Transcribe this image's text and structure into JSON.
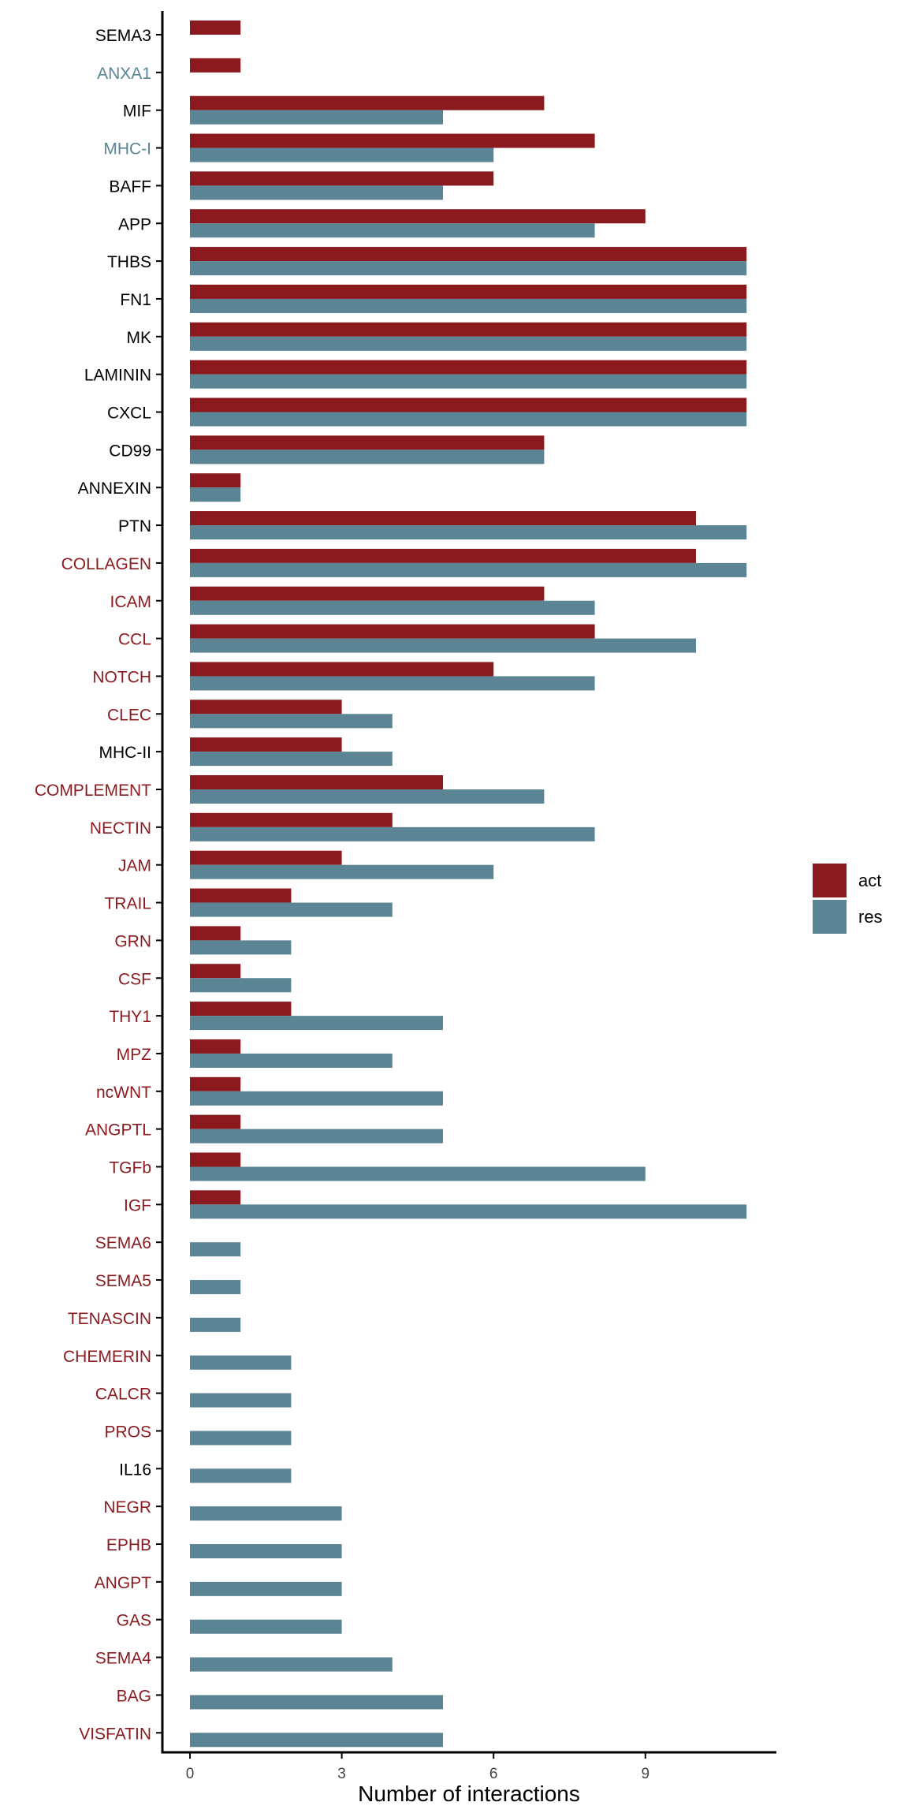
{
  "chart_data": {
    "type": "bar",
    "orientation": "horizontal",
    "xlabel": "Number of interactions",
    "ylabel": "",
    "xlim": [
      0,
      12
    ],
    "xticks": [
      0,
      3,
      6,
      9
    ],
    "grid": false,
    "legend_position": "right",
    "categories": [
      "SEMA3",
      "ANXA1",
      "MIF",
      "MHC-I",
      "BAFF",
      "APP",
      "THBS",
      "FN1",
      "MK",
      "LAMININ",
      "CXCL",
      "CD99",
      "ANNEXIN",
      "PTN",
      "COLLAGEN",
      "ICAM",
      "CCL",
      "NOTCH",
      "CLEC",
      "MHC-II",
      "COMPLEMENT",
      "NECTIN",
      "JAM",
      "TRAIL",
      "GRN",
      "CSF",
      "THY1",
      "MPZ",
      "ncWNT",
      "ANGPTL",
      "TGFb",
      "IGF",
      "SEMA6",
      "SEMA5",
      "TENASCIN",
      "CHEMERIN",
      "CALCR",
      "PROS",
      "IL16",
      "NEGR",
      "EPHB",
      "ANGPT",
      "GAS",
      "SEMA4",
      "BAG",
      "VISFATIN"
    ],
    "label_colors": [
      "#000000",
      "#5b8494",
      "#000000",
      "#5b8494",
      "#000000",
      "#000000",
      "#000000",
      "#000000",
      "#000000",
      "#000000",
      "#000000",
      "#000000",
      "#000000",
      "#000000",
      "#8b1a1f",
      "#8b1a1f",
      "#8b1a1f",
      "#8b1a1f",
      "#8b1a1f",
      "#000000",
      "#8b1a1f",
      "#8b1a1f",
      "#8b1a1f",
      "#8b1a1f",
      "#8b1a1f",
      "#8b1a1f",
      "#8b1a1f",
      "#8b1a1f",
      "#8b1a1f",
      "#8b1a1f",
      "#8b1a1f",
      "#8b1a1f",
      "#8b1a1f",
      "#8b1a1f",
      "#8b1a1f",
      "#8b1a1f",
      "#8b1a1f",
      "#8b1a1f",
      "#000000",
      "#8b1a1f",
      "#8b1a1f",
      "#8b1a1f",
      "#8b1a1f",
      "#8b1a1f",
      "#8b1a1f",
      "#8b1a1f"
    ],
    "series": [
      {
        "name": "act",
        "color": "#8b1a1f",
        "values": [
          1,
          1,
          7,
          8,
          6,
          9,
          11,
          11,
          11,
          11,
          11,
          7,
          1,
          10,
          10,
          7,
          8,
          6,
          3,
          3,
          5,
          4,
          3,
          2,
          1,
          1,
          2,
          1,
          1,
          1,
          1,
          1,
          0,
          0,
          0,
          0,
          0,
          0,
          0,
          0,
          0,
          0,
          0,
          0,
          0,
          0
        ]
      },
      {
        "name": "res",
        "color": "#5b8494",
        "values": [
          0,
          0,
          5,
          6,
          5,
          8,
          11,
          11,
          11,
          11,
          11,
          7,
          1,
          11,
          11,
          8,
          10,
          8,
          4,
          4,
          7,
          8,
          6,
          4,
          2,
          2,
          5,
          4,
          5,
          5,
          9,
          11,
          1,
          1,
          1,
          2,
          2,
          2,
          2,
          3,
          3,
          3,
          3,
          4,
          5,
          5
        ]
      }
    ]
  }
}
